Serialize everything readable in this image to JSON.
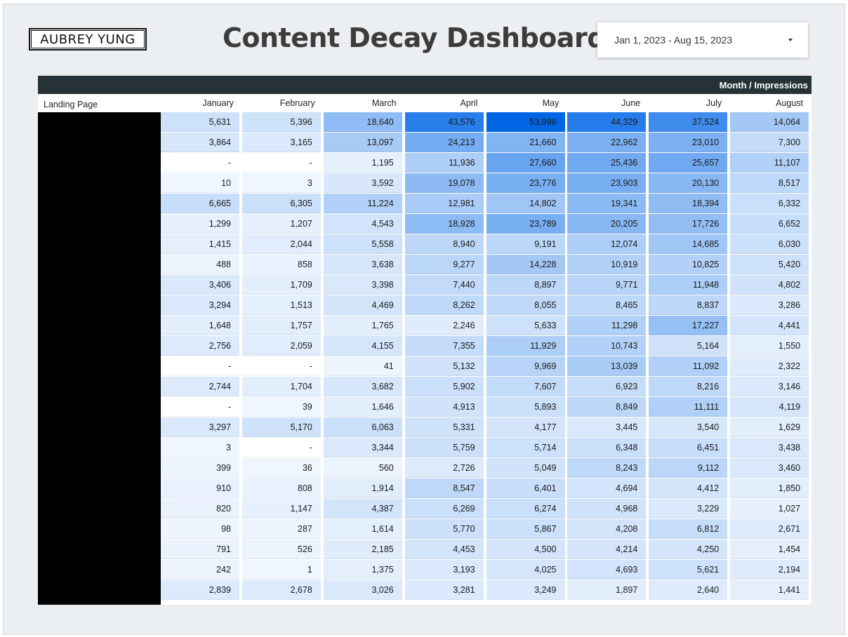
{
  "brand": {
    "logo_text": "AUBREY YUNG"
  },
  "header": {
    "title": "Content Decay Dashboard"
  },
  "date_range": {
    "value": "Jan 1, 2023 - Aug 15, 2023",
    "icon": "dropdown-caret-icon"
  },
  "table": {
    "group_header": "Month / Impressions",
    "dimension_header": "Landing Page",
    "month_headers": [
      "January",
      "February",
      "March",
      "April",
      "May",
      "June",
      "July",
      "August"
    ],
    "max_value": 53996,
    "heat_color_low": "#ffffff",
    "heat_color_high": "#0066e6",
    "rows": [
      {
        "values": [
          "5,631",
          "5,396",
          "18,640",
          "43,576",
          "53,996",
          "44,329",
          "37,524",
          "14,064"
        ]
      },
      {
        "values": [
          "3,864",
          "3,165",
          "13,097",
          "24,213",
          "21,660",
          "22,962",
          "23,010",
          "7,300"
        ]
      },
      {
        "values": [
          "-",
          "-",
          "1,195",
          "11,936",
          "27,660",
          "25,436",
          "25,657",
          "11,107"
        ]
      },
      {
        "values": [
          "10",
          "3",
          "3,592",
          "19,078",
          "23,776",
          "23,903",
          "20,130",
          "8,517"
        ]
      },
      {
        "values": [
          "6,665",
          "6,305",
          "11,224",
          "12,981",
          "14,802",
          "19,341",
          "18,394",
          "6,332"
        ]
      },
      {
        "values": [
          "1,299",
          "1,207",
          "4,543",
          "18,928",
          "23,789",
          "20,205",
          "17,726",
          "6,652"
        ]
      },
      {
        "values": [
          "1,415",
          "2,044",
          "5,558",
          "8,940",
          "9,191",
          "12,074",
          "14,685",
          "6,030"
        ]
      },
      {
        "values": [
          "488",
          "858",
          "3,638",
          "9,277",
          "14,228",
          "10,919",
          "10,825",
          "5,420"
        ]
      },
      {
        "values": [
          "3,406",
          "1,709",
          "3,398",
          "7,440",
          "8,897",
          "9,771",
          "11,948",
          "4,802"
        ]
      },
      {
        "values": [
          "3,294",
          "1,513",
          "4,469",
          "8,262",
          "8,055",
          "8,465",
          "8,837",
          "3,286"
        ]
      },
      {
        "values": [
          "1,648",
          "1,757",
          "1,765",
          "2,246",
          "5,633",
          "11,298",
          "17,227",
          "4,441"
        ]
      },
      {
        "values": [
          "2,756",
          "2,059",
          "4,155",
          "7,355",
          "11,929",
          "10,743",
          "5,164",
          "1,550"
        ]
      },
      {
        "values": [
          "-",
          "-",
          "41",
          "5,132",
          "9,969",
          "13,039",
          "11,092",
          "2,322"
        ]
      },
      {
        "values": [
          "2,744",
          "1,704",
          "3,682",
          "5,902",
          "7,607",
          "6,923",
          "8,216",
          "3,146"
        ]
      },
      {
        "values": [
          "-",
          "39",
          "1,646",
          "4,913",
          "5,893",
          "8,849",
          "11,111",
          "4,119"
        ]
      },
      {
        "values": [
          "3,297",
          "5,170",
          "6,063",
          "5,331",
          "4,177",
          "3,445",
          "3,540",
          "1,629"
        ]
      },
      {
        "values": [
          "3",
          "-",
          "3,344",
          "5,759",
          "5,714",
          "6,348",
          "6,451",
          "3,438"
        ]
      },
      {
        "values": [
          "399",
          "36",
          "560",
          "2,726",
          "5,049",
          "8,243",
          "9,112",
          "3,460"
        ]
      },
      {
        "values": [
          "910",
          "808",
          "1,914",
          "8,547",
          "6,401",
          "4,694",
          "4,412",
          "1,850"
        ]
      },
      {
        "values": [
          "820",
          "1,147",
          "4,387",
          "6,269",
          "6,274",
          "4,968",
          "3,229",
          "1,027"
        ]
      },
      {
        "values": [
          "98",
          "287",
          "1,614",
          "5,770",
          "5,867",
          "4,208",
          "6,812",
          "2,671"
        ]
      },
      {
        "values": [
          "791",
          "526",
          "2,185",
          "4,453",
          "4,500",
          "4,214",
          "4,250",
          "1,454"
        ]
      },
      {
        "values": [
          "242",
          "1",
          "1,375",
          "3,193",
          "4,025",
          "4,693",
          "5,621",
          "2,194"
        ]
      },
      {
        "values": [
          "2,839",
          "2,678",
          "3,026",
          "3,281",
          "3,249",
          "1,897",
          "2,640",
          "1,441"
        ]
      }
    ]
  }
}
